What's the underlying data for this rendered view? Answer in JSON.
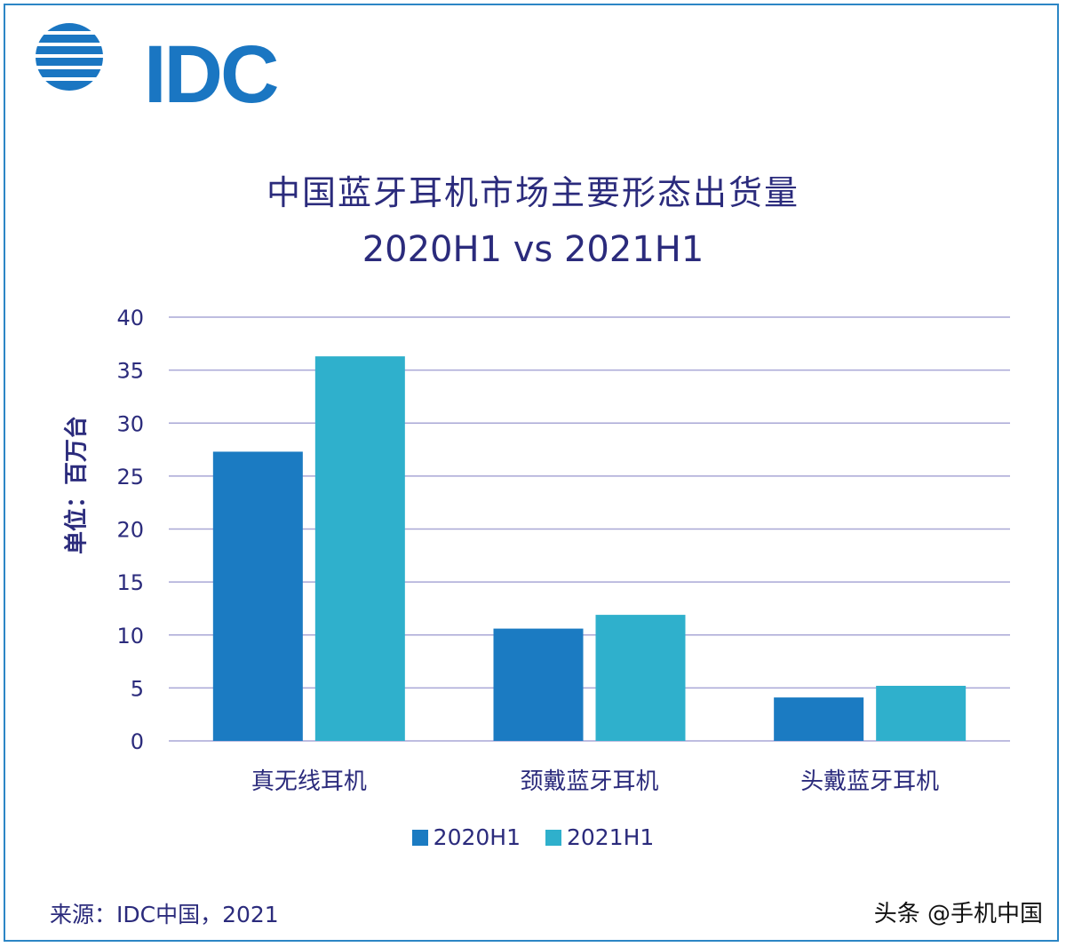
{
  "logo": {
    "text": "IDC",
    "color": "#1a76c2"
  },
  "source": "来源：IDC中国，2021",
  "watermark": "头条 @手机中国",
  "chart_data": {
    "type": "bar",
    "title": "中国蓝牙耳机市场主要形态出货量",
    "subtitle": "2020H1 vs 2021H1",
    "ylabel": "单位：百万台",
    "xlabel": "",
    "categories": [
      "真无线耳机",
      "颈戴蓝牙耳机",
      "头戴蓝牙耳机"
    ],
    "series": [
      {
        "name": "2020H1",
        "values": [
          27.3,
          10.6,
          4.1
        ],
        "color": "#1b7bc2"
      },
      {
        "name": "2021H1",
        "values": [
          36.3,
          11.9,
          5.2
        ],
        "color": "#2fb0cc"
      }
    ],
    "ylim": [
      0,
      40
    ],
    "yticks": [
      0,
      5,
      10,
      15,
      20,
      25,
      30,
      35,
      40
    ],
    "grid": true,
    "legend": "bottom-center"
  }
}
